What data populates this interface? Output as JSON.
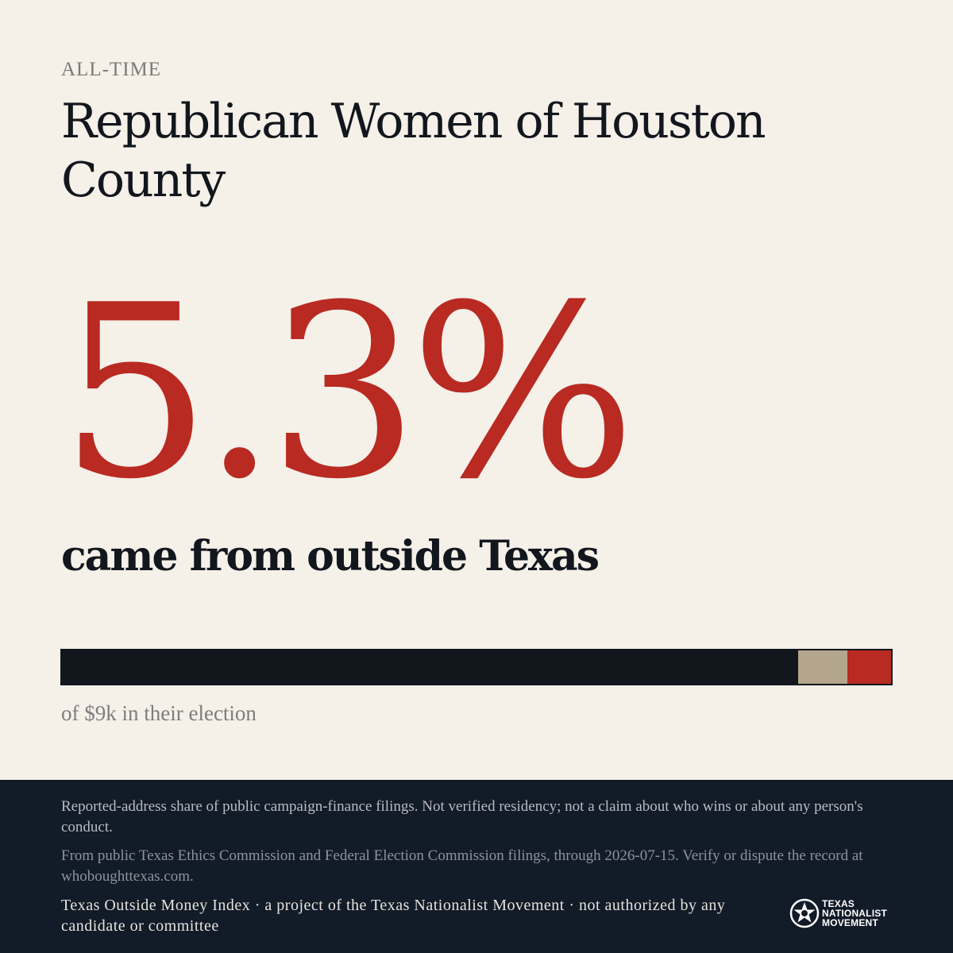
{
  "kicker": "ALL-TIME",
  "title": "Republican Women of Houston County",
  "stat": {
    "percent_text": "5.3%",
    "subline": "came from outside Texas"
  },
  "bar": {
    "segments": [
      {
        "key": "texas",
        "share": 0.888,
        "color": "#12161d"
      },
      {
        "key": "unknown",
        "share": 0.059,
        "color": "#b3a68c"
      },
      {
        "key": "outside",
        "share": 0.053,
        "color": "#b82a22"
      }
    ],
    "caption": "of $9k in their election"
  },
  "footer": {
    "disclaimer": "Reported-address share of public campaign-finance filings. Not verified residency; not a claim about who wins or about any person's conduct.",
    "source": "From public Texas Ethics Commission and Federal Election Commission filings, through 2026-07-15. Verify or dispute the record at whoboughttexas.com.",
    "credit": "Texas Outside Money Index · a project of the Texas Nationalist Movement · not authorized by any candidate or committee",
    "logo": {
      "icon": "star-seal-icon",
      "line1": "TEXAS",
      "line2": "NATIONALIST",
      "line3": "MOVEMENT"
    }
  }
}
